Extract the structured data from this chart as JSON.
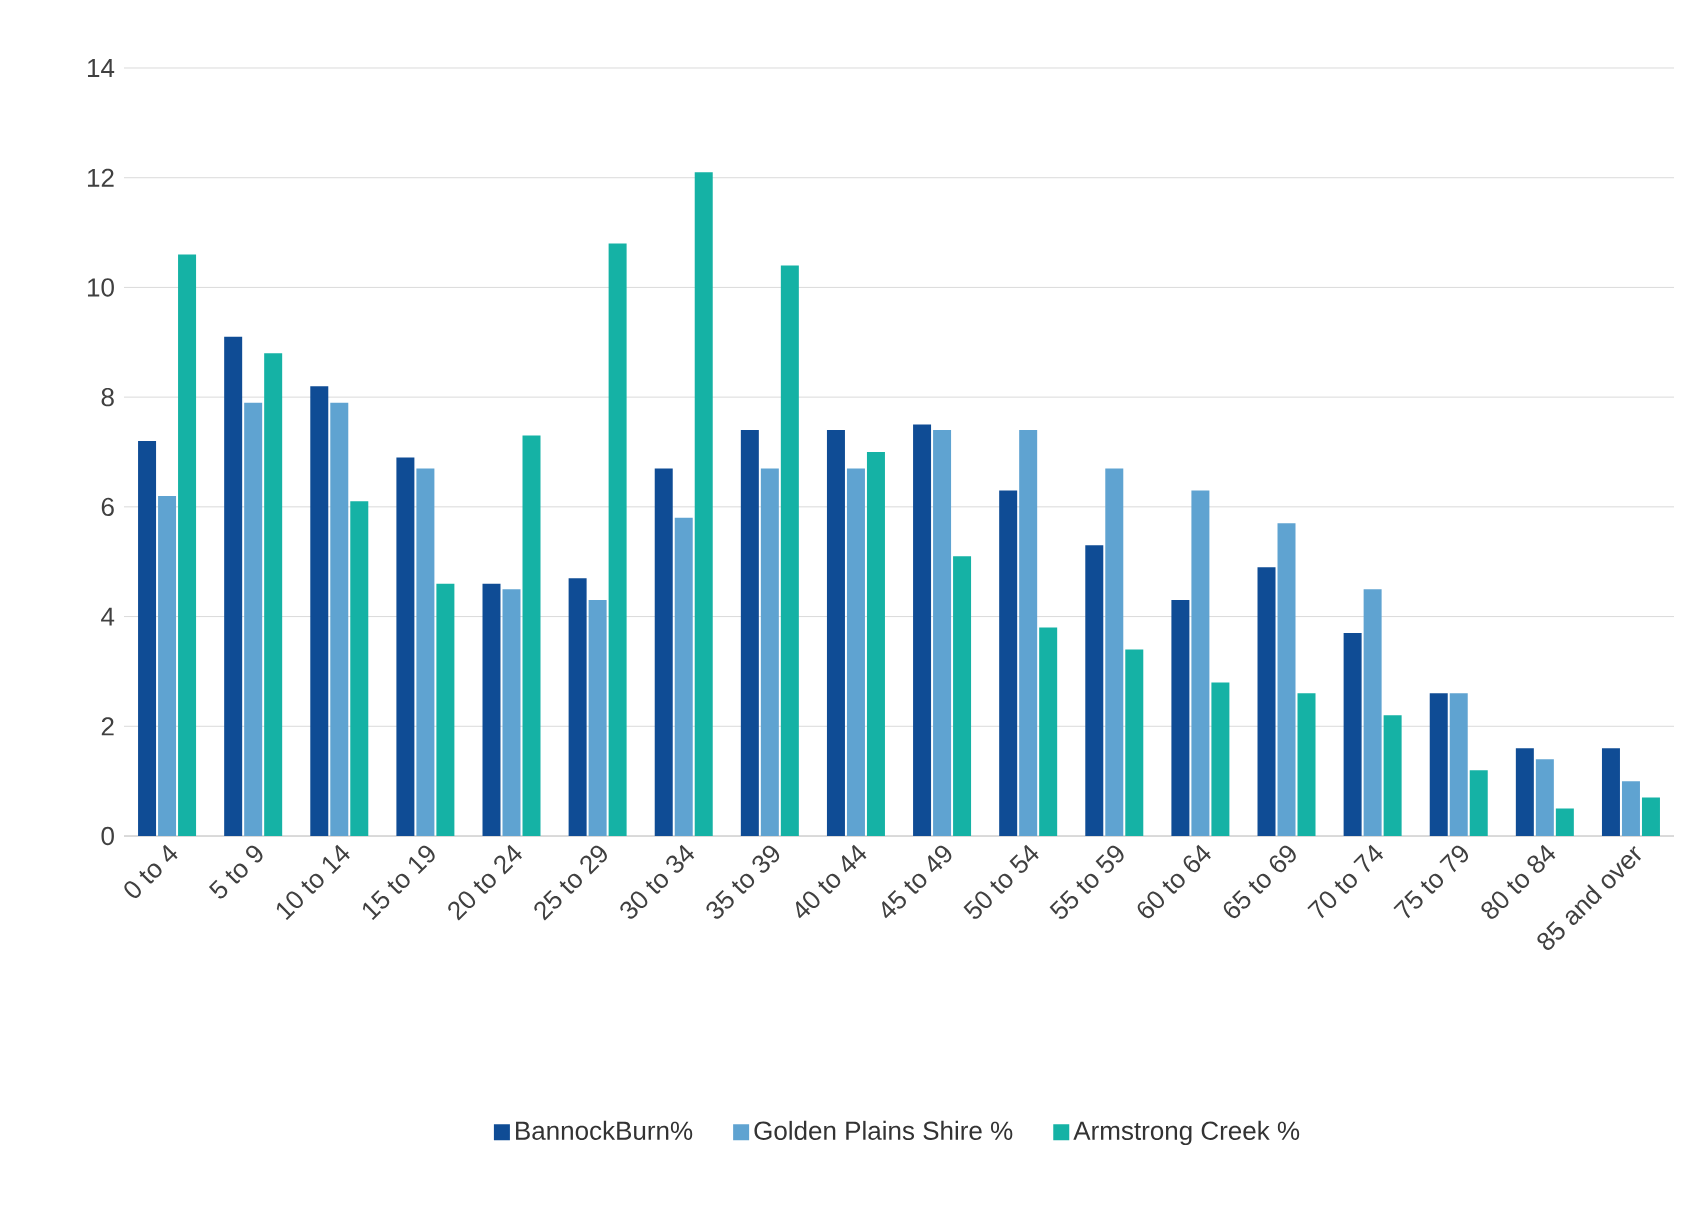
{
  "chart_data": {
    "type": "bar",
    "categories": [
      "0 to 4",
      "5 to 9",
      "10 to 14",
      "15 to 19",
      "20 to 24",
      "25 to 29",
      "30 to 34",
      "35 to 39",
      "40 to 44",
      "45 to 49",
      "50 to 54",
      "55 to 59",
      "60 to 64",
      "65 to 69",
      "70 to 74",
      "75 to 79",
      "80 to 84",
      "85 and over"
    ],
    "series": [
      {
        "name": "BannockBurn%",
        "color": "#0f4c95",
        "values": [
          7.2,
          9.1,
          8.2,
          6.9,
          4.6,
          4.7,
          6.7,
          7.4,
          7.4,
          7.5,
          6.3,
          5.3,
          4.3,
          4.9,
          3.7,
          2.6,
          1.6,
          1.6
        ]
      },
      {
        "name": "Golden Plains Shire %",
        "color": "#5fa3d1",
        "values": [
          6.2,
          7.9,
          7.9,
          6.7,
          4.5,
          4.3,
          5.8,
          6.7,
          6.7,
          7.4,
          7.4,
          6.7,
          6.3,
          5.7,
          4.5,
          2.6,
          1.4,
          1.0
        ]
      },
      {
        "name": "Armstrong Creek %",
        "color": "#15b2a5",
        "values": [
          10.6,
          8.8,
          6.1,
          4.6,
          7.3,
          10.8,
          12.1,
          10.4,
          7.0,
          5.1,
          3.8,
          3.4,
          2.8,
          2.6,
          2.2,
          1.2,
          0.5,
          0.7
        ]
      }
    ],
    "ylim": [
      0,
      14
    ],
    "yticks": [
      0,
      2,
      4,
      6,
      8,
      10,
      12,
      14
    ],
    "grid": "y",
    "legend": "bottom"
  }
}
